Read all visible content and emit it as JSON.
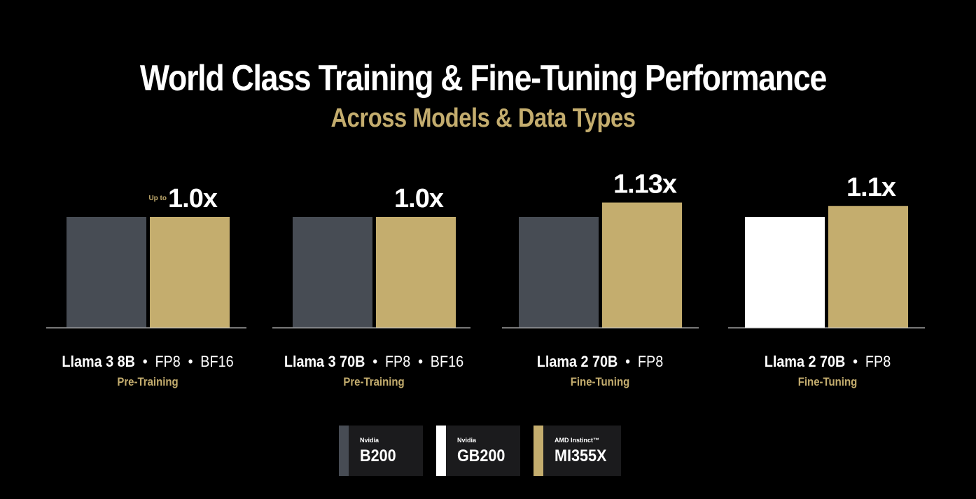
{
  "header": {
    "title": "World Class Training & Fine-Tuning Performance",
    "subtitle": "Across Models & Data Types"
  },
  "colors": {
    "background": "#000000",
    "b200": "#474c54",
    "gb200": "#ffffff",
    "mi355x": "#c4ad6e",
    "axis": "#bfbfbf",
    "accent_text": "#c4ad6e"
  },
  "chart_data": {
    "type": "bar",
    "ylim": [
      0,
      1.13
    ],
    "grid": false,
    "legend_placement": "bottom-center",
    "groups": [
      {
        "model": "Llama 3 8B",
        "dot1": "•",
        "dtype1": "FP8",
        "dot2": "•",
        "dtype2": "BF16",
        "workload": "Pre-Training",
        "bars": [
          {
            "series": "B200",
            "value": 1.0,
            "label": ""
          },
          {
            "series": "MI355X",
            "value": 1.0,
            "label": "1.0x",
            "prefix": "Up to"
          }
        ]
      },
      {
        "model": "Llama 3 70B",
        "dot1": "•",
        "dtype1": "FP8",
        "dot2": "•",
        "dtype2": "BF16",
        "workload": "Pre-Training",
        "bars": [
          {
            "series": "B200",
            "value": 1.0,
            "label": ""
          },
          {
            "series": "MI355X",
            "value": 1.0,
            "label": "1.0x",
            "prefix": ""
          }
        ]
      },
      {
        "model": "Llama 2 70B",
        "dot1": "•",
        "dtype1": "FP8",
        "dot2": "",
        "dtype2": "",
        "workload": "Fine-Tuning",
        "bars": [
          {
            "series": "B200",
            "value": 1.0,
            "label": ""
          },
          {
            "series": "MI355X",
            "value": 1.13,
            "label": "1.13x",
            "prefix": ""
          }
        ]
      },
      {
        "model": "Llama 2 70B",
        "dot1": "•",
        "dtype1": "FP8",
        "dot2": "",
        "dtype2": "",
        "workload": "Fine-Tuning",
        "bars": [
          {
            "series": "GB200",
            "value": 1.0,
            "label": ""
          },
          {
            "series": "MI355X",
            "value": 1.1,
            "label": "1.1x",
            "prefix": ""
          }
        ]
      }
    ]
  },
  "legend": [
    {
      "vendor": "Nvidia",
      "name": "B200",
      "color": "#474c54"
    },
    {
      "vendor": "Nvidia",
      "name": "GB200",
      "color": "#ffffff"
    },
    {
      "vendor": "AMD Instinct™",
      "name": "MI355X",
      "color": "#c4ad6e"
    }
  ]
}
